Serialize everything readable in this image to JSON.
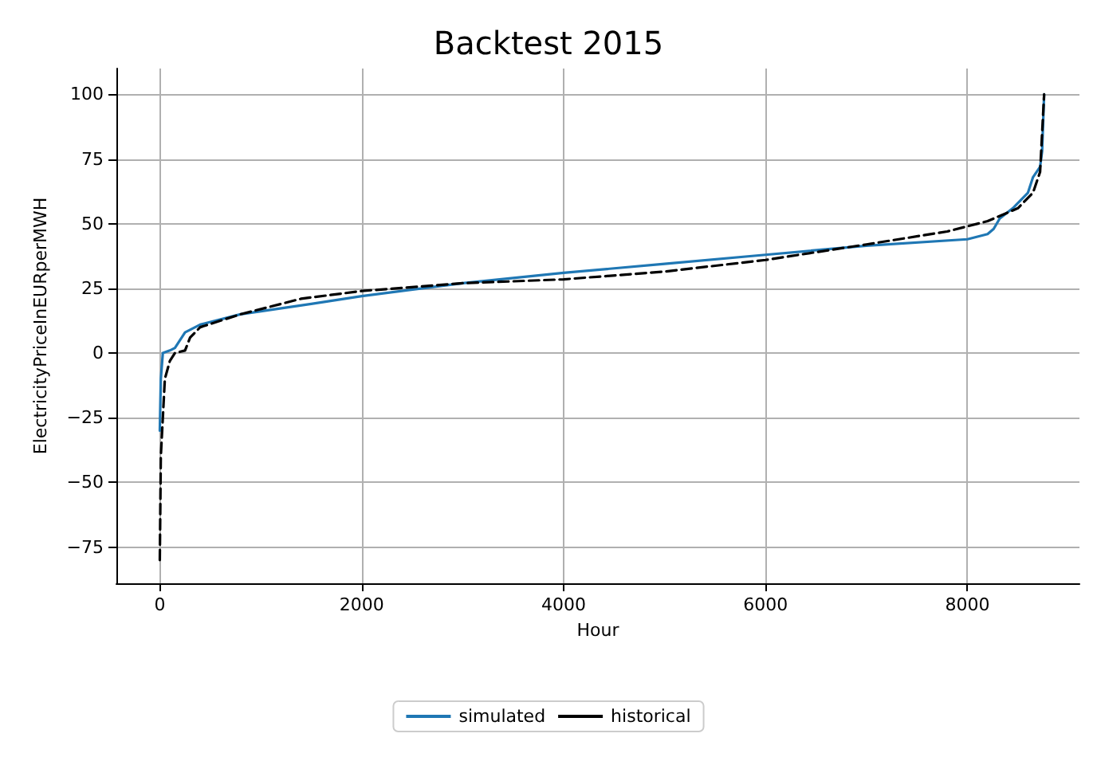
{
  "chart_data": {
    "type": "line",
    "title": "Backtest 2015",
    "xlabel": "Hour",
    "ylabel": "ElectricityPriceInEURperMWH",
    "xlim": [
      -430,
      9110
    ],
    "ylim": [
      -89,
      110
    ],
    "xticks": [
      0,
      2000,
      4000,
      6000,
      8000
    ],
    "yticks": [
      -75,
      -50,
      -25,
      0,
      25,
      50,
      75,
      100
    ],
    "grid": true,
    "legend": "bottom",
    "series": [
      {
        "name": "simulated",
        "color": "#1f77b4",
        "line_style": "solid",
        "x": [
          0,
          10,
          30,
          100,
          150,
          250,
          400,
          800,
          1500,
          2000,
          3000,
          4000,
          5000,
          6000,
          7000,
          8000,
          8200,
          8260,
          8320,
          8450,
          8550,
          8600,
          8650,
          8720,
          8740,
          8760
        ],
        "values": [
          -30,
          -10,
          0,
          1,
          2,
          8,
          11,
          15,
          19,
          22,
          27,
          31,
          34.5,
          38,
          41.5,
          44,
          46,
          48,
          52,
          56,
          60,
          62,
          68,
          72,
          78,
          100
        ]
      },
      {
        "name": "historical",
        "color": "#000000",
        "line_style": "dashed",
        "x": [
          0,
          10,
          50,
          100,
          150,
          250,
          300,
          400,
          800,
          1400,
          2000,
          3000,
          4000,
          5000,
          6000,
          7000,
          7800,
          8200,
          8500,
          8650,
          8720,
          8760
        ],
        "values": [
          -80,
          -40,
          -10,
          -3,
          0,
          1,
          6,
          10,
          15,
          21,
          24,
          27,
          28.5,
          31.5,
          36,
          42,
          47,
          51,
          56,
          62,
          70,
          100
        ]
      }
    ]
  }
}
